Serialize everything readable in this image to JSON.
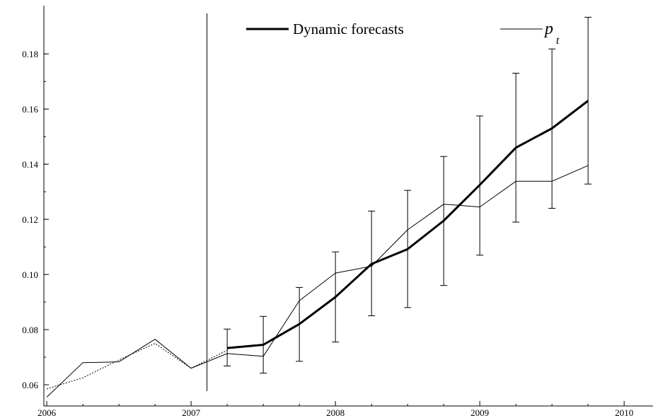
{
  "chart_data": {
    "type": "line",
    "title": "",
    "xlabel": "",
    "ylabel": "",
    "xlim": [
      2005.98,
      2010.2
    ],
    "ylim": [
      0.0523,
      0.1975
    ],
    "x_ticks": [
      "2006",
      "2007",
      "2008",
      "2009",
      "2010"
    ],
    "y_ticks": [
      "0.06",
      "0.08",
      "0.10",
      "0.12",
      "0.14",
      "0.16",
      "0.18"
    ],
    "grid": false,
    "legend": {
      "placement": "top",
      "forecast_label": "Dynamic forecasts",
      "actual_main": "p",
      "actual_sub": "t"
    },
    "forecast_start": 2007.11,
    "series": [
      {
        "name": "Dynamic forecasts",
        "style": "thick",
        "x": [
          2007.25,
          2007.5,
          2007.75,
          2008.0,
          2008.25,
          2008.5,
          2008.75,
          2009.0,
          2009.25,
          2009.5,
          2009.75
        ],
        "y": [
          0.0733,
          0.0745,
          0.082,
          0.0918,
          0.1038,
          0.1092,
          0.1195,
          0.1325,
          0.146,
          0.153,
          0.163
        ],
        "error_low": [
          0.0668,
          0.0642,
          0.0685,
          0.0755,
          0.085,
          0.088,
          0.096,
          0.107,
          0.119,
          0.124,
          0.1328
        ],
        "error_high": [
          0.0802,
          0.0848,
          0.0953,
          0.1082,
          0.123,
          0.1305,
          0.1428,
          0.1575,
          0.173,
          0.1818,
          0.1933
        ]
      },
      {
        "name": "p t",
        "style": "thin",
        "x": [
          2006.0,
          2006.25,
          2006.5,
          2006.75,
          2007.0,
          2007.25,
          2007.5,
          2007.75,
          2008.0,
          2008.25,
          2008.5,
          2008.75,
          2009.0,
          2009.25,
          2009.5,
          2009.75
        ],
        "y": [
          0.0555,
          0.068,
          0.0683,
          0.0765,
          0.066,
          0.0713,
          0.0703,
          0.0905,
          0.1005,
          0.103,
          0.1162,
          0.1255,
          0.1245,
          0.1338,
          0.1338,
          0.1395
        ]
      },
      {
        "name": "",
        "style": "dashed",
        "x": [
          2006.0,
          2006.25,
          2006.5,
          2006.75,
          2007.0,
          2007.25
        ],
        "y": [
          0.0585,
          0.0625,
          0.069,
          0.075,
          0.066,
          0.0725
        ]
      }
    ]
  }
}
